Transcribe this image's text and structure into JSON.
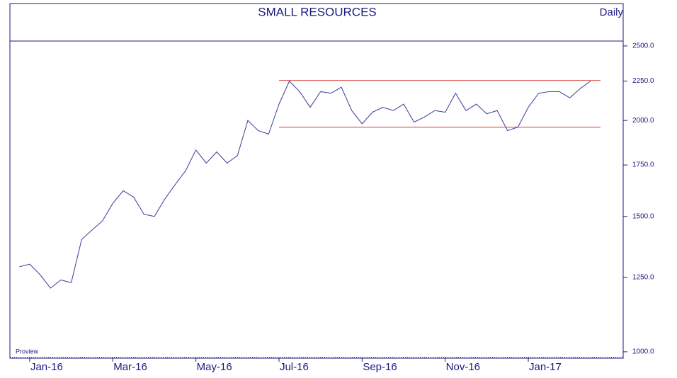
{
  "chart_data": {
    "type": "line",
    "title": "SMALL RESOURCES",
    "frequency_label": "Daily",
    "watermark": "Proview",
    "log_scale": true,
    "ylim": [
      983,
      2537
    ],
    "yticks": [
      {
        "value": 1000,
        "label": "1000.0"
      },
      {
        "value": 1250,
        "label": "1250.0"
      },
      {
        "value": 1500,
        "label": "1500.0"
      },
      {
        "value": 1750,
        "label": "1750.0"
      },
      {
        "value": 2000,
        "label": "2000.0"
      },
      {
        "value": 2250,
        "label": "2250.0"
      },
      {
        "value": 2500,
        "label": "2500.0"
      }
    ],
    "categories": [
      null,
      "Jan-16",
      null,
      null,
      null,
      null,
      null,
      null,
      null,
      "Mar-16",
      null,
      null,
      null,
      null,
      null,
      null,
      null,
      "May-16",
      null,
      null,
      null,
      null,
      null,
      null,
      null,
      "Jul-16",
      null,
      null,
      null,
      null,
      null,
      null,
      null,
      "Sep-16",
      null,
      null,
      null,
      null,
      null,
      null,
      null,
      "Nov-16",
      null,
      null,
      null,
      null,
      null,
      null,
      null,
      "Jan-17",
      null,
      null,
      null,
      null,
      null,
      null
    ],
    "series": [
      {
        "color": "#4a4aa0",
        "values": [
          1290,
          1300,
          1260,
          1210,
          1240,
          1230,
          1400,
          1440,
          1480,
          1560,
          1620,
          1590,
          1510,
          1500,
          1580,
          1650,
          1720,
          1830,
          1760,
          1820,
          1760,
          1800,
          2000,
          1940,
          1920,
          2100,
          2250,
          2180,
          2080,
          2180,
          2170,
          2210,
          2060,
          1980,
          2050,
          2080,
          2060,
          2100,
          1990,
          2020,
          2060,
          2050,
          2170,
          2060,
          2100,
          2040,
          2060,
          1940,
          1960,
          2080,
          2170,
          2180,
          2180,
          2140,
          2200,
          2250
        ]
      }
    ],
    "hlines": [
      {
        "value": 2255,
        "color": "#e06060"
      },
      {
        "value": 1960,
        "color": "#e06060"
      }
    ]
  }
}
